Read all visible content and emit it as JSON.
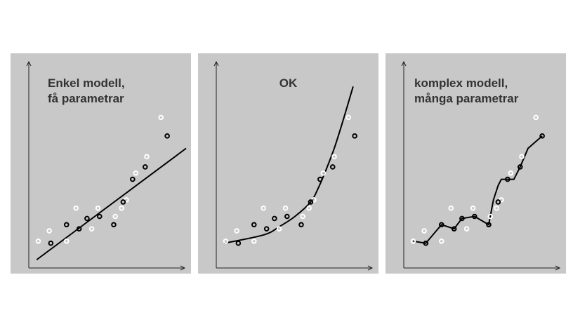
{
  "colors": {
    "panel_bg": "#c8c8c8",
    "axis": "#222222",
    "curve": "#000000",
    "point_dark": "#000000",
    "point_light": "#ffffff"
  },
  "panels": [
    {
      "id": "simple",
      "label_lines": [
        "Enkel modell,",
        "få parametrar"
      ],
      "label_align": "left"
    },
    {
      "id": "ok",
      "label_lines": [
        "OK"
      ],
      "label_align": "center"
    },
    {
      "id": "complex",
      "label_lines": [
        "komplex modell,",
        "många parametrar"
      ],
      "label_align": "left"
    }
  ],
  "chart_data": {
    "type": "scatter",
    "xlim": [
      0,
      100
    ],
    "ylim": [
      0,
      100
    ],
    "points_dark": [
      [
        14,
        12
      ],
      [
        24,
        21
      ],
      [
        32,
        19
      ],
      [
        37,
        24
      ],
      [
        45,
        25
      ],
      [
        54,
        21
      ],
      [
        60,
        32
      ],
      [
        66,
        43
      ],
      [
        74,
        49
      ],
      [
        88,
        64
      ]
    ],
    "points_light": [
      [
        6,
        13
      ],
      [
        13,
        18
      ],
      [
        24,
        13
      ],
      [
        30,
        29
      ],
      [
        40,
        19
      ],
      [
        44,
        29
      ],
      [
        55,
        25
      ],
      [
        59,
        29
      ],
      [
        62,
        33
      ],
      [
        68,
        46
      ],
      [
        75,
        54
      ],
      [
        84,
        73
      ]
    ],
    "fits": {
      "simple": [
        [
          5,
          4
        ],
        [
          100,
          58
        ]
      ],
      "ok": [
        [
          5,
          12
        ],
        [
          30,
          16
        ],
        [
          40,
          20
        ],
        [
          50,
          25
        ],
        [
          60,
          32
        ],
        [
          65,
          39
        ],
        [
          70,
          48
        ],
        [
          75,
          58
        ],
        [
          80,
          70
        ],
        [
          87,
          88
        ]
      ],
      "complex": [
        [
          6,
          13
        ],
        [
          14,
          12
        ],
        [
          24,
          21
        ],
        [
          32,
          19
        ],
        [
          37,
          24
        ],
        [
          45,
          25
        ],
        [
          54,
          21
        ],
        [
          57,
          33
        ],
        [
          60,
          40
        ],
        [
          62,
          43
        ],
        [
          66,
          43
        ],
        [
          70,
          43
        ],
        [
          74,
          49
        ],
        [
          79,
          58
        ],
        [
          88,
          64
        ]
      ]
    }
  }
}
